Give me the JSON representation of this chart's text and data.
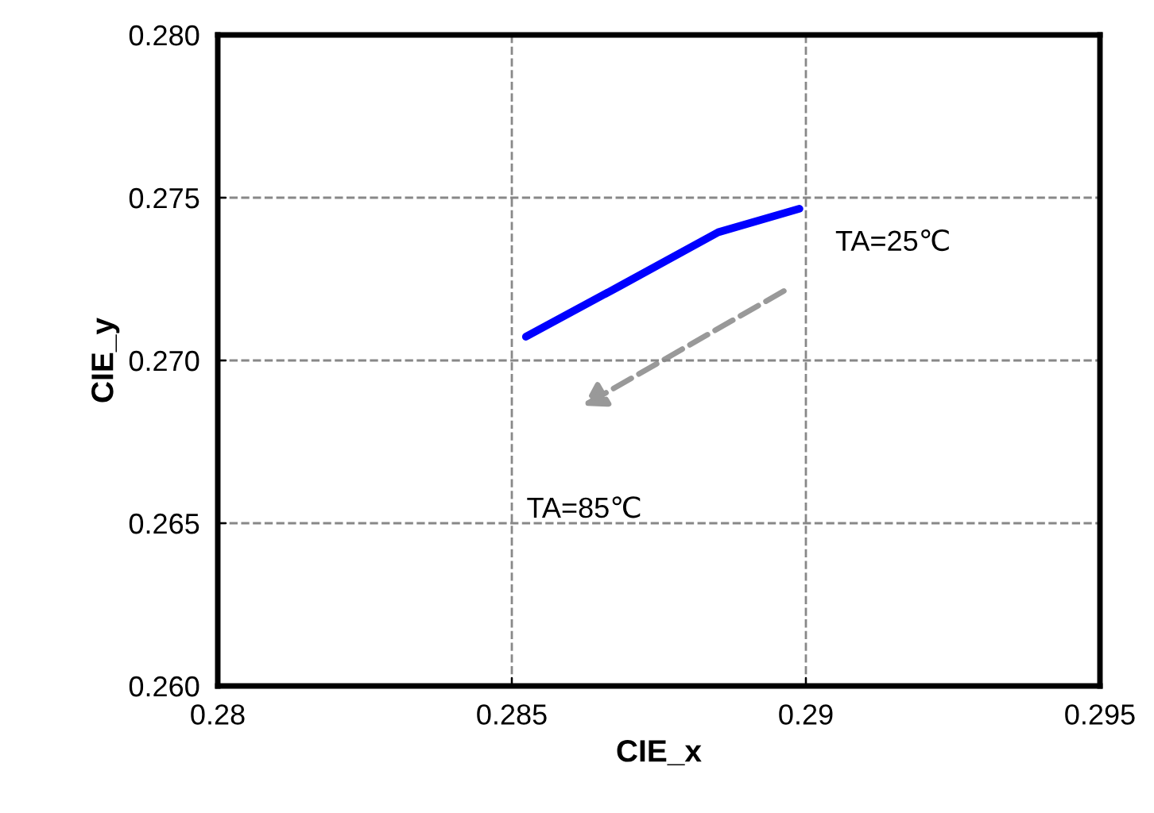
{
  "chart_data": {
    "type": "line",
    "xlabel": "CIE_x",
    "ylabel": "CIE_y",
    "x": [
      0.28524,
      0.28684,
      0.28851,
      0.28989
    ],
    "series": [
      {
        "color": "#0000ff",
        "values": [
          0.27073,
          0.27229,
          0.27394,
          0.27466
        ]
      }
    ],
    "xlim": [
      0.28,
      0.295
    ],
    "ylim": [
      0.26,
      0.28
    ],
    "xticks": [
      0.28,
      0.285,
      0.29,
      0.295
    ],
    "yticks": [
      {
        "value": 0.26,
        "label": "0.260"
      },
      0.265,
      {
        "value": 0.27,
        "label": "0.270"
      },
      0.275,
      {
        "value": 0.28,
        "label": "0.280"
      }
    ],
    "grid": true,
    "marker": "none",
    "line_style": "solid",
    "annotations": [
      "TA=25℃",
      "TA=85℃"
    ]
  }
}
